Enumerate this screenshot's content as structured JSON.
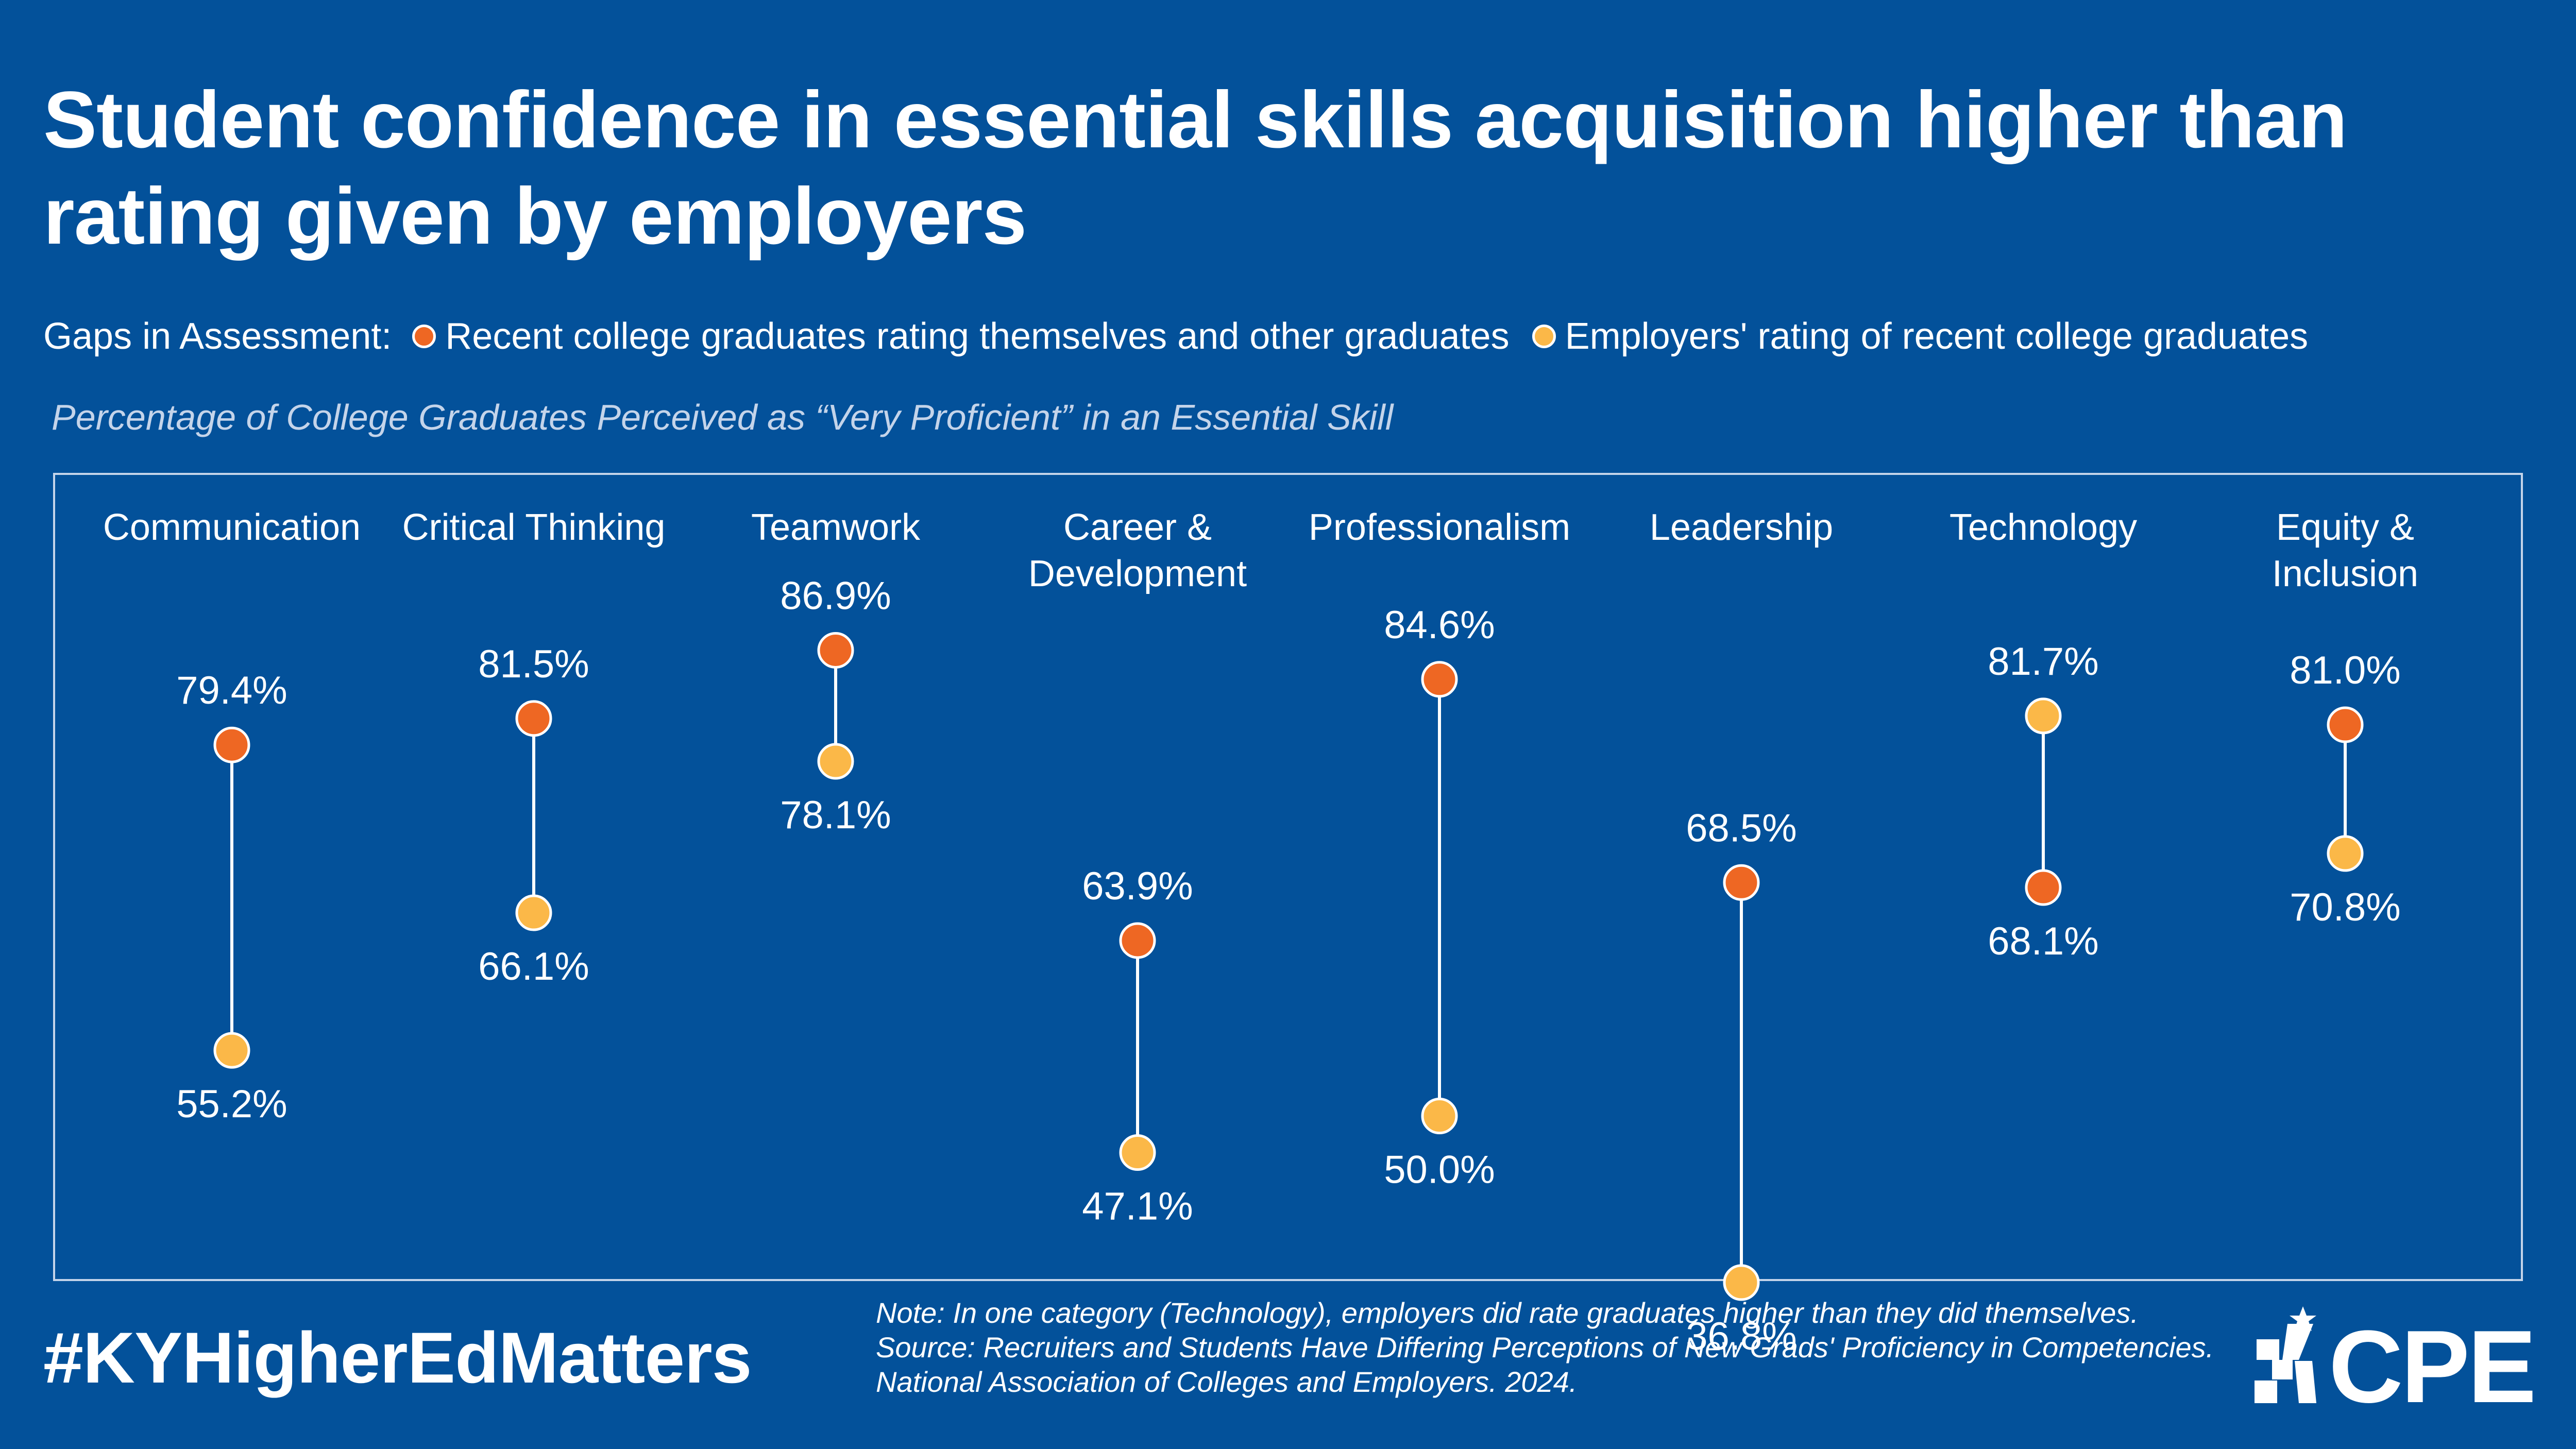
{
  "title": "Student confidence in essential skills acquisition higher than rating given by employers",
  "legend": {
    "label": "Gaps in Assessment:",
    "items": [
      {
        "label": "Recent college graduates rating themselves and other graduates",
        "color": "#ee6723"
      },
      {
        "label": "Employers' rating of recent college graduates",
        "color": "#fbb848"
      }
    ]
  },
  "subtitle": "Percentage of College Graduates Perceived as “Very Proficient” in an Essential Skill",
  "colors": {
    "background": "#03519a",
    "students": "#ee6723",
    "employers": "#fbb848",
    "connector": "#ffffff"
  },
  "chart_data": {
    "type": "dumbbell",
    "unit": "%",
    "categories": [
      {
        "label": [
          "Communication"
        ],
        "students": 79.4,
        "employers": 55.2
      },
      {
        "label": [
          "Critical Thinking"
        ],
        "students": 81.5,
        "employers": 66.1
      },
      {
        "label": [
          "Teamwork"
        ],
        "students": 86.9,
        "employers": 78.1
      },
      {
        "label": [
          "Career &",
          "Development"
        ],
        "students": 63.9,
        "employers": 47.1
      },
      {
        "label": [
          "Professionalism"
        ],
        "students": 84.6,
        "employers": 50.0
      },
      {
        "label": [
          "Leadership"
        ],
        "students": 68.5,
        "employers": 36.8
      },
      {
        "label": [
          "Technology"
        ],
        "students": 68.1,
        "employers": 81.7
      },
      {
        "label": [
          "Equity &",
          "Inclusion"
        ],
        "students": 81.0,
        "employers": 70.8
      }
    ],
    "series": [
      {
        "name": "Recent college graduates rating themselves and other graduates",
        "key": "students"
      },
      {
        "name": "Employers' rating of recent college graduates",
        "key": "employers"
      }
    ],
    "grid": false,
    "axes": "none"
  },
  "footer": {
    "hashtag": "#KYHigherEdMatters",
    "note_lines": [
      "Note: In one category (Technology), employers did rate graduates higher than they did themselves.",
      "Source: Recruiters and Students Have Differing Perceptions of New Grads' Proficiency in Competencies.",
      "National Association of Colleges and Employers. 2024."
    ],
    "logo_text": "CPE"
  }
}
